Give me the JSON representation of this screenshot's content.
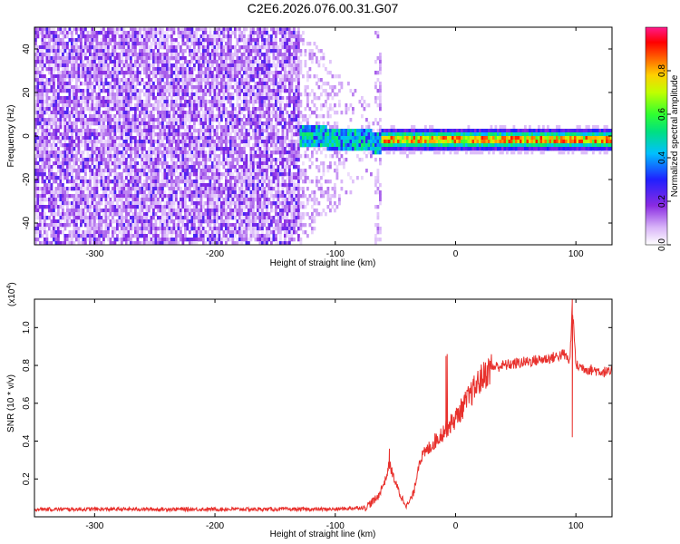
{
  "title": "C2E6.2026.076.00.31.G07",
  "chart_data": [
    {
      "type": "heatmap",
      "title": "C2E6.2026.076.00.31.G07",
      "xlabel": "Height of straight line (km)",
      "ylabel": "Frequency (Hz)",
      "xlim": [
        -350,
        130
      ],
      "ylim": [
        -50,
        50
      ],
      "x_ticks": [
        -300,
        -200,
        -100,
        0,
        100
      ],
      "y_ticks": [
        -40,
        -20,
        0,
        20,
        40
      ],
      "colorbar": {
        "label": "Normalized spectral amplitude",
        "range": [
          0,
          1
        ],
        "ticks": [
          "0.0",
          "0.2",
          "0.4",
          "0.6",
          "0.8"
        ],
        "colors": [
          "#ffffff",
          "#d8b4f8",
          "#8a2be2",
          "#2020ff",
          "#00c0ff",
          "#00e080",
          "#30ff30",
          "#c0ff00",
          "#ffd000",
          "#ff6000",
          "#ff0000",
          "#ff1a8c"
        ]
      },
      "description_regions": [
        {
          "x": [
            -350,
            -130
          ],
          "amplitude": [
            0.05,
            0.2
          ],
          "frequency_spread": "full"
        },
        {
          "x": [
            -130,
            -62
          ],
          "amplitude": [
            0.1,
            0.5
          ],
          "frequency_spread": "narrowing"
        },
        {
          "x": [
            -62,
            130
          ],
          "amplitude": [
            0.5,
            0.9
          ],
          "frequency_spread": "narrow near 0 Hz"
        }
      ]
    },
    {
      "type": "line",
      "xlabel": "Height of straight line (km)",
      "ylabel": "SNR (10 * v/v)",
      "multiplier_label": "(x10",
      "multiplier_exp": "4",
      "multiplier_close": ")",
      "xlim": [
        -350,
        130
      ],
      "ylim": [
        0,
        1.15
      ],
      "x_ticks": [
        -300,
        -200,
        -100,
        0,
        100
      ],
      "y_ticks": [
        0.2,
        0.4,
        0.6,
        0.8,
        1.0
      ],
      "y_tick_labels": [
        "0.2",
        "0.4",
        "0.6",
        "0.8",
        "1.0"
      ],
      "series": [
        {
          "name": "SNR",
          "color": "#e8302c",
          "x": [
            -350,
            -200,
            -100,
            -75,
            -65,
            -58,
            -55,
            -50,
            -45,
            -40,
            -35,
            -30,
            -20,
            -10,
            0,
            10,
            20,
            30,
            40,
            50,
            60,
            70,
            80,
            90,
            95,
            97,
            100,
            110,
            120,
            130
          ],
          "y": [
            0.04,
            0.04,
            0.04,
            0.05,
            0.1,
            0.2,
            0.28,
            0.18,
            0.1,
            0.06,
            0.12,
            0.3,
            0.38,
            0.45,
            0.52,
            0.62,
            0.72,
            0.79,
            0.8,
            0.81,
            0.82,
            0.83,
            0.84,
            0.86,
            0.82,
            1.12,
            0.8,
            0.78,
            0.77,
            0.76
          ]
        }
      ],
      "spikes": [
        {
          "x": -55,
          "y": 0.36
        },
        {
          "x": -8,
          "y": 0.85
        },
        {
          "x": -7,
          "y": 0.86
        },
        {
          "x": 97,
          "y": 1.15
        },
        {
          "x": 97,
          "y": 0.42
        }
      ]
    }
  ]
}
